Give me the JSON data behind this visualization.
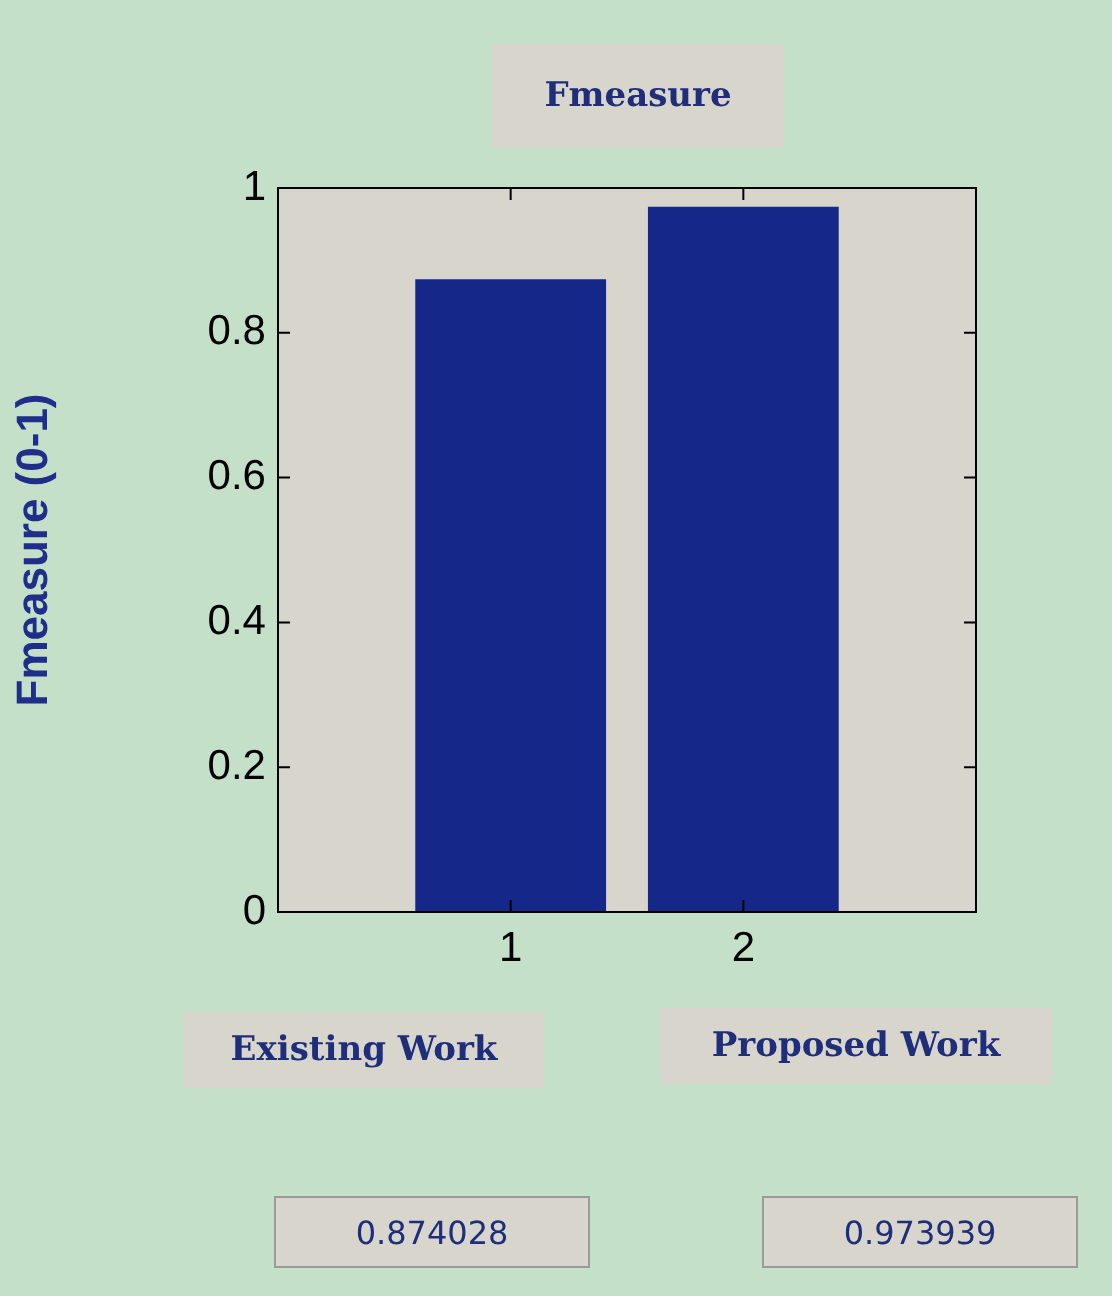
{
  "chart_data": {
    "type": "bar",
    "title": "Fmeasure",
    "ylabel": "Fmeasure (0-1)",
    "x": [
      1,
      2
    ],
    "values": [
      0.874028,
      0.973939
    ],
    "color": "#15288a",
    "xlim": [
      0,
      3
    ],
    "xticks": [
      1,
      2
    ],
    "ylim": [
      0,
      1
    ],
    "yticks": [
      0,
      0.2,
      0.4,
      0.6,
      0.8,
      1
    ],
    "grid": false,
    "legend": false,
    "annotations": [
      "Existing Work",
      "Proposed Work",
      "0.874028",
      "0.973939"
    ]
  }
}
